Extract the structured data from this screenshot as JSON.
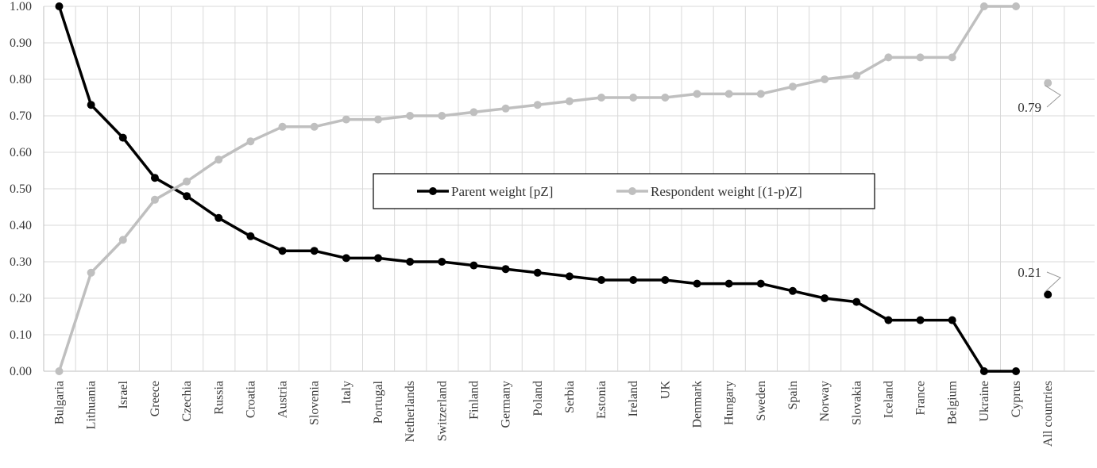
{
  "chart_data": {
    "type": "line",
    "categories": [
      "Bulgaria",
      "Lithuania",
      "Israel",
      "Greece",
      "Czechia",
      "Russia",
      "Croatia",
      "Austria",
      "Slovenia",
      "Italy",
      "Portugal",
      "Netherlands",
      "Switzerland",
      "Finland",
      "Germany",
      "Poland",
      "Serbia",
      "Estonia",
      "Ireland",
      "UK",
      "Denmark",
      "Hungary",
      "Sweden",
      "Spain",
      "Norway",
      "Slovakia",
      "Iceland",
      "France",
      "Belgium",
      "Ukraine",
      "Cyprus",
      "All countries"
    ],
    "series": [
      {
        "name": "Parent weight [pZ]",
        "color": "#000000",
        "values": [
          1.0,
          0.73,
          0.64,
          0.53,
          0.48,
          0.42,
          0.37,
          0.33,
          0.33,
          0.31,
          0.31,
          0.3,
          0.3,
          0.29,
          0.28,
          0.27,
          0.26,
          0.25,
          0.25,
          0.25,
          0.24,
          0.24,
          0.24,
          0.22,
          0.2,
          0.19,
          0.14,
          0.14,
          0.14,
          0.0,
          0.0,
          0.21
        ],
        "connected_through_index": 30
      },
      {
        "name": "Respondent weight [(1-p)Z]",
        "color": "#bfbfbf",
        "values": [
          0.0,
          0.27,
          0.36,
          0.47,
          0.52,
          0.58,
          0.63,
          0.67,
          0.67,
          0.69,
          0.69,
          0.7,
          0.7,
          0.71,
          0.72,
          0.73,
          0.74,
          0.75,
          0.75,
          0.75,
          0.76,
          0.76,
          0.76,
          0.78,
          0.8,
          0.81,
          0.86,
          0.86,
          0.86,
          1.0,
          1.0,
          0.79
        ],
        "connected_through_index": 30
      }
    ],
    "y_ticks": [
      "0.00",
      "0.10",
      "0.20",
      "0.30",
      "0.40",
      "0.50",
      "0.60",
      "0.70",
      "0.80",
      "0.90",
      "1.00"
    ],
    "ylim": [
      0,
      1
    ],
    "grid": true,
    "legend_position": "center",
    "annotations": [
      {
        "text": "0.79",
        "series_index": 1,
        "point_index": 31
      },
      {
        "text": "0.21",
        "series_index": 0,
        "point_index": 31
      }
    ]
  }
}
